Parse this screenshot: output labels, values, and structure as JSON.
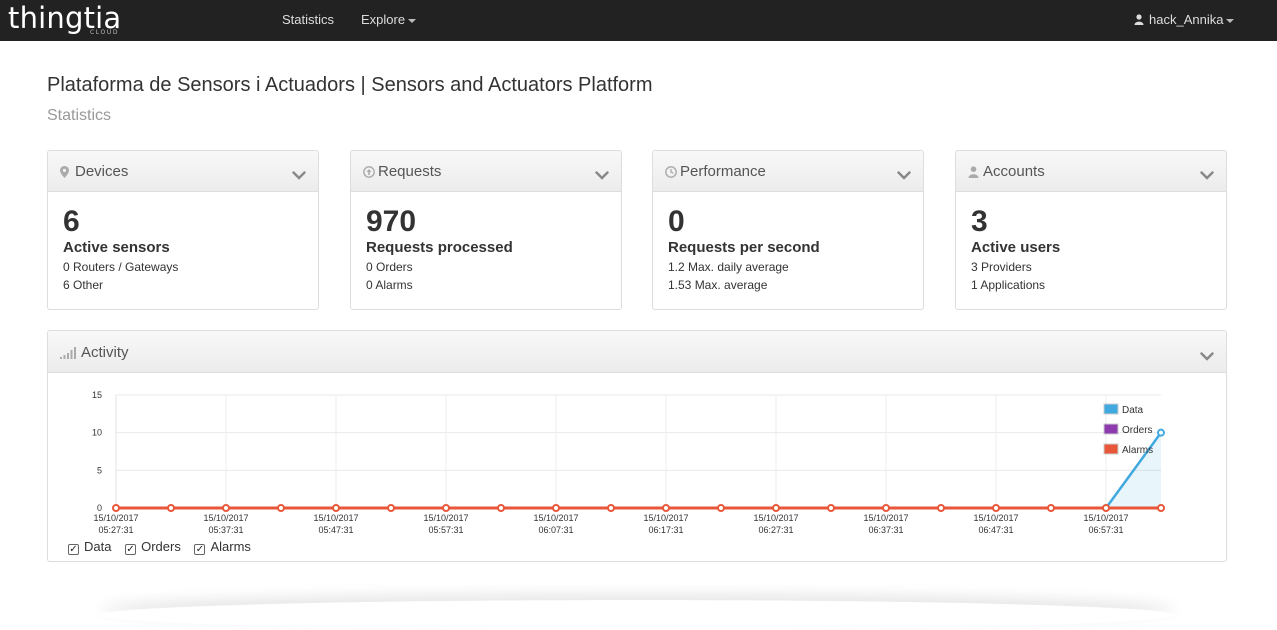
{
  "nav": {
    "brand": "thingtia",
    "brand_sub": "CLOUD",
    "statistics": "Statistics",
    "explore": "Explore",
    "user": "hack_Annika"
  },
  "page": {
    "title": "Plataforma de Sensors i Actuadors | Sensors and Actuators Platform",
    "subtitle": "Statistics"
  },
  "panels": [
    {
      "title": "Devices",
      "icon": "map-marker-icon",
      "number": "6",
      "label": "Active sensors",
      "sub1": "0 Routers / Gateways",
      "sub2": "6 Other"
    },
    {
      "title": "Requests",
      "icon": "arrow-circle-icon",
      "number": "970",
      "label": "Requests processed",
      "sub1": "0 Orders",
      "sub2": "0 Alarms"
    },
    {
      "title": "Performance",
      "icon": "clock-icon",
      "number": "0",
      "label": "Requests per second",
      "sub1": "1.2 Max. daily average",
      "sub2": "1.53 Max. average"
    },
    {
      "title": "Accounts",
      "icon": "users-icon",
      "number": "3",
      "label": "Active users",
      "sub1": "3 Providers",
      "sub2": "1 Applications"
    }
  ],
  "activity": {
    "title": "Activity",
    "checks": [
      "Data",
      "Orders",
      "Alarms"
    ]
  },
  "colors": {
    "data": "#3fa9e0",
    "orders": "#8e3bb0",
    "alarms": "#e8573a"
  },
  "chart_data": {
    "type": "line",
    "x": [
      "15/10/2017 05:27:31",
      "",
      "15/10/2017 05:37:31",
      "",
      "15/10/2017 05:47:31",
      "",
      "15/10/2017 05:57:31",
      "",
      "15/10/2017 06:07:31",
      "",
      "15/10/2017 06:17:31",
      "",
      "15/10/2017 06:27:31",
      "",
      "15/10/2017 06:37:31",
      "",
      "15/10/2017 06:47:31",
      "",
      "15/10/2017 06:57:31",
      ""
    ],
    "tick_labels": [
      [
        "15/10/2017",
        "05:27:31"
      ],
      [
        "15/10/2017",
        "05:37:31"
      ],
      [
        "15/10/2017",
        "05:47:31"
      ],
      [
        "15/10/2017",
        "05:57:31"
      ],
      [
        "15/10/2017",
        "06:07:31"
      ],
      [
        "15/10/2017",
        "06:17:31"
      ],
      [
        "15/10/2017",
        "06:27:31"
      ],
      [
        "15/10/2017",
        "06:37:31"
      ],
      [
        "15/10/2017",
        "06:47:31"
      ],
      [
        "15/10/2017",
        "06:57:31"
      ]
    ],
    "yticks": [
      "15",
      "10",
      "5",
      "0"
    ],
    "ylim": [
      0,
      15
    ],
    "grid": true,
    "legend": "top-right",
    "series": [
      {
        "name": "Data",
        "values": [
          0,
          0,
          0,
          0,
          0,
          0,
          0,
          0,
          0,
          0,
          0,
          0,
          0,
          0,
          0,
          0,
          0,
          0,
          0,
          10
        ]
      },
      {
        "name": "Orders",
        "values": [
          0,
          0,
          0,
          0,
          0,
          0,
          0,
          0,
          0,
          0,
          0,
          0,
          0,
          0,
          0,
          0,
          0,
          0,
          0,
          0
        ]
      },
      {
        "name": "Alarms",
        "values": [
          0,
          0,
          0,
          0,
          0,
          0,
          0,
          0,
          0,
          0,
          0,
          0,
          0,
          0,
          0,
          0,
          0,
          0,
          0,
          0
        ]
      }
    ]
  }
}
